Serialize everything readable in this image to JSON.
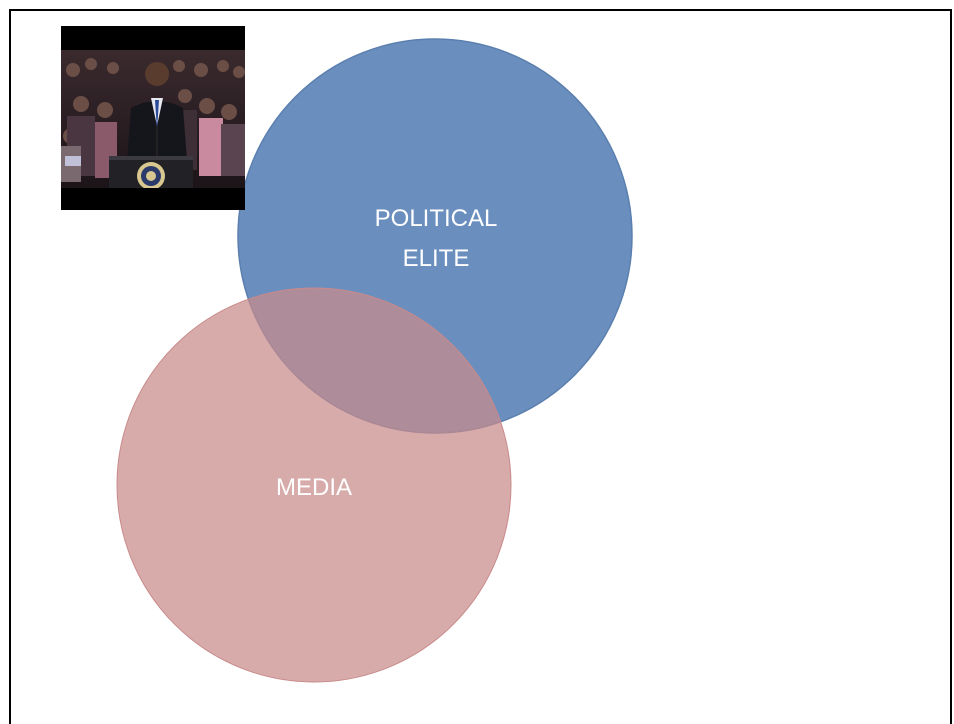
{
  "diagram": {
    "circles": [
      {
        "id": "political-elite",
        "label_lines": [
          "POLITICAL",
          "ELITE"
        ],
        "fill": "#6a8fbf",
        "stroke": "#5b7fae"
      },
      {
        "id": "media",
        "label_lines": [
          "MEDIA"
        ],
        "fill": "#c98a8a",
        "stroke": "#c98a8a"
      }
    ]
  },
  "image": {
    "subject": "speaker-at-podium-photo",
    "icon": "presidential-seal-icon"
  }
}
